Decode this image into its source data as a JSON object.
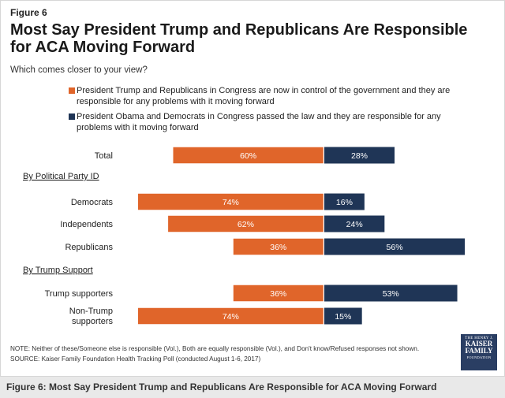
{
  "figure_label": "Figure 6",
  "title": "Most Say President Trump and Republicans Are Responsible for ACA Moving Forward",
  "subtitle": "Which comes closer to your view?",
  "legend": [
    {
      "label": "President Trump and Republicans in Congress are now in control of the government and they are responsible for any problems with it moving forward",
      "color": "#e0652a"
    },
    {
      "label": "President Obama and Democrats in Congress passed the law and they are responsible for any problems with it moving forward",
      "color": "#1f3556"
    }
  ],
  "chart_data": {
    "type": "bar",
    "orientation": "diverging-horizontal",
    "groups": [
      {
        "label": "",
        "categories": [
          "Total"
        ]
      },
      {
        "label": "By Political Party ID",
        "categories": [
          "Democrats",
          "Independents",
          "Republicans"
        ]
      },
      {
        "label": "By Trump Support",
        "categories": [
          "Trump supporters",
          "Non-Trump supporters"
        ]
      }
    ],
    "categories": [
      "Total",
      "Democrats",
      "Independents",
      "Republicans",
      "Trump supporters",
      "Non-Trump supporters"
    ],
    "series": [
      {
        "name": "President Trump and Republicans in Congress are now in control of the government and they are responsible for any problems with it moving forward",
        "values": [
          60,
          74,
          62,
          36,
          36,
          74
        ],
        "color": "#e0652a"
      },
      {
        "name": "President Obama and Democrats in Congress passed the law and they are responsible for any problems with it moving forward",
        "values": [
          28,
          16,
          24,
          56,
          53,
          15
        ],
        "color": "#1f3556"
      }
    ],
    "value_suffix": "%"
  },
  "notes": [
    "NOTE: Neither of these/Someone else is responsible (Vol.), Both are equally responsible (Vol.), and Don't know/Refused responses not shown.",
    "SOURCE: Kaiser Family Foundation Health Tracking Poll (conducted August 1-6, 2017)"
  ],
  "logo": {
    "line1": "THE HENRY J.",
    "line2": "KAISER",
    "line3": "FAMILY",
    "line4": "FOUNDATION"
  },
  "caption": "Figure 6: Most Say President Trump and Republicans Are Responsible for ACA Moving Forward"
}
